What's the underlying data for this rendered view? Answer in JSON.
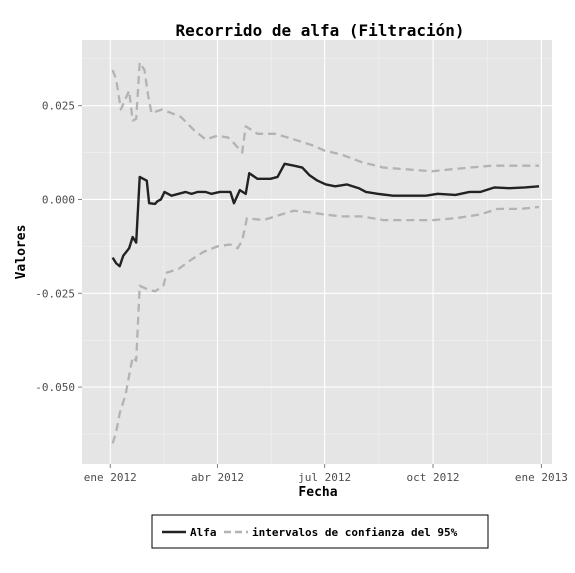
{
  "chart_data": {
    "type": "line",
    "title": "Recorrido de alfa (Filtración)",
    "xlabel": "Fecha",
    "ylabel": "Valores",
    "x_ticks": [
      {
        "date": "2012-01-01",
        "label": "ene 2012"
      },
      {
        "date": "2012-04-01",
        "label": "abr 2012"
      },
      {
        "date": "2012-07-01",
        "label": "jul 2012"
      },
      {
        "date": "2012-10-01",
        "label": "oct 2012"
      },
      {
        "date": "2013-01-01",
        "label": "ene 2013"
      }
    ],
    "y_ticks": [
      {
        "value": 0.025,
        "label": "0.025"
      },
      {
        "value": 0.0,
        "label": "0.000"
      },
      {
        "value": -0.025,
        "label": "-0.025"
      },
      {
        "value": -0.05,
        "label": "-0.050"
      }
    ],
    "xlim": [
      "2011-12-08",
      "2013-01-10"
    ],
    "ylim": [
      -0.0705,
      0.0425
    ],
    "grid": true,
    "legend_position": "bottom",
    "colors": {
      "panel_background": "#e5e5e5",
      "grid_major": "#ffffff",
      "grid_minor": "#f2f2f2",
      "alfa": "#222222",
      "ci": "#b3b3b3"
    },
    "series": [
      {
        "name": "Alfa",
        "style": "solid",
        "points": [
          [
            "2012-01-03",
            -0.0155
          ],
          [
            "2012-01-06",
            -0.017
          ],
          [
            "2012-01-09",
            -0.0178
          ],
          [
            "2012-01-12",
            -0.015
          ],
          [
            "2012-01-17",
            -0.013
          ],
          [
            "2012-01-20",
            -0.01
          ],
          [
            "2012-01-23",
            -0.0115
          ],
          [
            "2012-01-26",
            0.006
          ],
          [
            "2012-02-01",
            0.005
          ],
          [
            "2012-02-03",
            -0.001
          ],
          [
            "2012-02-08",
            -0.0012
          ],
          [
            "2012-02-10",
            -0.0005
          ],
          [
            "2012-02-13",
            0.0
          ],
          [
            "2012-02-16",
            0.002
          ],
          [
            "2012-02-22",
            0.001
          ],
          [
            "2012-02-28",
            0.0015
          ],
          [
            "2012-03-05",
            0.002
          ],
          [
            "2012-03-10",
            0.0015
          ],
          [
            "2012-03-15",
            0.002
          ],
          [
            "2012-03-22",
            0.002
          ],
          [
            "2012-03-27",
            0.0015
          ],
          [
            "2012-04-03",
            0.002
          ],
          [
            "2012-04-12",
            0.002
          ],
          [
            "2012-04-15",
            -0.001
          ],
          [
            "2012-04-20",
            0.0025
          ],
          [
            "2012-04-25",
            0.0015
          ],
          [
            "2012-04-28",
            0.007
          ],
          [
            "2012-05-05",
            0.0055
          ],
          [
            "2012-05-10",
            0.0055
          ],
          [
            "2012-05-16",
            0.0055
          ],
          [
            "2012-05-22",
            0.006
          ],
          [
            "2012-05-28",
            0.0095
          ],
          [
            "2012-06-05",
            0.009
          ],
          [
            "2012-06-12",
            0.0085
          ],
          [
            "2012-06-18",
            0.0065
          ],
          [
            "2012-06-25",
            0.005
          ],
          [
            "2012-07-02",
            0.004
          ],
          [
            "2012-07-10",
            0.0035
          ],
          [
            "2012-07-20",
            0.004
          ],
          [
            "2012-07-30",
            0.003
          ],
          [
            "2012-08-05",
            0.002
          ],
          [
            "2012-08-15",
            0.0015
          ],
          [
            "2012-08-28",
            0.001
          ],
          [
            "2012-09-10",
            0.001
          ],
          [
            "2012-09-25",
            0.001
          ],
          [
            "2012-10-05",
            0.0015
          ],
          [
            "2012-10-20",
            0.0012
          ],
          [
            "2012-11-01",
            0.002
          ],
          [
            "2012-11-10",
            0.002
          ],
          [
            "2012-11-22",
            0.0032
          ],
          [
            "2012-12-05",
            0.003
          ],
          [
            "2012-12-18",
            0.0032
          ],
          [
            "2012-12-30",
            0.0035
          ]
        ]
      },
      {
        "name": "intervalos de confianza del 95%",
        "style": "dashed",
        "points": [
          [
            "2012-01-03",
            0.0345
          ],
          [
            "2012-01-06",
            0.032
          ],
          [
            "2012-01-10",
            0.024
          ],
          [
            "2012-01-17",
            0.029
          ],
          [
            "2012-01-20",
            0.021
          ],
          [
            "2012-01-23",
            0.0215
          ],
          [
            "2012-01-26",
            0.0365
          ],
          [
            "2012-01-30",
            0.0345
          ],
          [
            "2012-02-02",
            0.028
          ],
          [
            "2012-02-05",
            0.023
          ],
          [
            "2012-02-14",
            0.024
          ],
          [
            "2012-03-01",
            0.022
          ],
          [
            "2012-03-12",
            0.0185
          ],
          [
            "2012-03-22",
            0.016
          ],
          [
            "2012-04-01",
            0.017
          ],
          [
            "2012-04-10",
            0.0165
          ],
          [
            "2012-04-15",
            0.015
          ],
          [
            "2012-04-22",
            0.0125
          ],
          [
            "2012-04-25",
            0.0195
          ],
          [
            "2012-05-05",
            0.0175
          ],
          [
            "2012-05-20",
            0.0175
          ],
          [
            "2012-06-05",
            0.016
          ],
          [
            "2012-06-20",
            0.0145
          ],
          [
            "2012-07-01",
            0.013
          ],
          [
            "2012-07-15",
            0.012
          ],
          [
            "2012-08-01",
            0.01
          ],
          [
            "2012-08-20",
            0.0085
          ],
          [
            "2012-09-10",
            0.008
          ],
          [
            "2012-09-30",
            0.0075
          ],
          [
            "2012-10-15",
            0.008
          ],
          [
            "2012-11-01",
            0.0085
          ],
          [
            "2012-11-20",
            0.009
          ],
          [
            "2012-12-15",
            0.009
          ],
          [
            "2012-12-30",
            0.009
          ]
        ]
      },
      {
        "name": "intervalos de confianza del 95%",
        "style": "dashed",
        "points": [
          [
            "2012-01-03",
            -0.065
          ],
          [
            "2012-01-06",
            -0.062
          ],
          [
            "2012-01-09",
            -0.057
          ],
          [
            "2012-01-14",
            -0.052
          ],
          [
            "2012-01-20",
            -0.042
          ],
          [
            "2012-01-23",
            -0.043
          ],
          [
            "2012-01-26",
            -0.023
          ],
          [
            "2012-02-02",
            -0.024
          ],
          [
            "2012-02-08",
            -0.0245
          ],
          [
            "2012-02-15",
            -0.023
          ],
          [
            "2012-02-18",
            -0.0195
          ],
          [
            "2012-02-28",
            -0.0185
          ],
          [
            "2012-03-10",
            -0.016
          ],
          [
            "2012-03-20",
            -0.014
          ],
          [
            "2012-04-01",
            -0.0125
          ],
          [
            "2012-04-12",
            -0.012
          ],
          [
            "2012-04-18",
            -0.013
          ],
          [
            "2012-04-22",
            -0.011
          ],
          [
            "2012-04-26",
            -0.005
          ],
          [
            "2012-05-10",
            -0.0055
          ],
          [
            "2012-05-25",
            -0.004
          ],
          [
            "2012-06-05",
            -0.003
          ],
          [
            "2012-06-20",
            -0.0035
          ],
          [
            "2012-07-01",
            -0.004
          ],
          [
            "2012-07-15",
            -0.0045
          ],
          [
            "2012-08-01",
            -0.0045
          ],
          [
            "2012-08-20",
            -0.0055
          ],
          [
            "2012-09-10",
            -0.0055
          ],
          [
            "2012-10-01",
            -0.0055
          ],
          [
            "2012-10-20",
            -0.005
          ],
          [
            "2012-11-10",
            -0.004
          ],
          [
            "2012-11-25",
            -0.0025
          ],
          [
            "2012-12-15",
            -0.0025
          ],
          [
            "2012-12-30",
            -0.002
          ]
        ]
      }
    ],
    "legend": [
      {
        "label": "Alfa",
        "style": "solid"
      },
      {
        "label": "intervalos de confianza del 95%",
        "style": "dashed"
      }
    ]
  }
}
